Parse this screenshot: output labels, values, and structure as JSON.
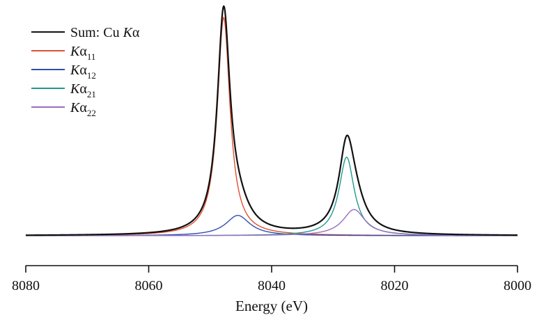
{
  "chart_data": {
    "type": "line",
    "title": "",
    "xlabel": "Energy (eV)",
    "ylabel": "",
    "xlim": [
      8080,
      8000
    ],
    "x_reversed": true,
    "ticks": [
      "8080",
      "8060",
      "8040",
      "8020",
      "8000"
    ],
    "tick_values": [
      8080,
      8060,
      8040,
      8020,
      8000
    ],
    "legend_position": "top-left",
    "grid": false,
    "series": [
      {
        "key": "sum",
        "name_parts": [
          "Sum: Cu ",
          "K",
          "α",
          ""
        ],
        "color": "#111111",
        "width": 2.2,
        "components": [
          "ka11",
          "ka12",
          "ka21",
          "ka22"
        ]
      },
      {
        "key": "ka11",
        "name_parts": [
          "",
          "K",
          "α",
          "11"
        ],
        "color": "#e0502f",
        "width": 1.4,
        "center": 8047.8,
        "amplitude": 1.0,
        "hwhm": 1.25
      },
      {
        "key": "ka12",
        "name_parts": [
          "",
          "K",
          "α",
          "12"
        ],
        "color": "#2f4fb0",
        "width": 1.4,
        "center": 8045.5,
        "amplitude": 0.093,
        "hwhm": 2.4
      },
      {
        "key": "ka21",
        "name_parts": [
          "",
          "K",
          "α",
          "21"
        ],
        "color": "#1f9a8e",
        "width": 1.4,
        "center": 8027.8,
        "amplitude": 0.36,
        "hwhm": 1.5
      },
      {
        "key": "ka22",
        "name_parts": [
          "",
          "K",
          "α",
          "22"
        ],
        "color": "#9a6cc0",
        "width": 1.4,
        "center": 8026.6,
        "amplitude": 0.12,
        "hwhm": 2.2
      }
    ]
  }
}
